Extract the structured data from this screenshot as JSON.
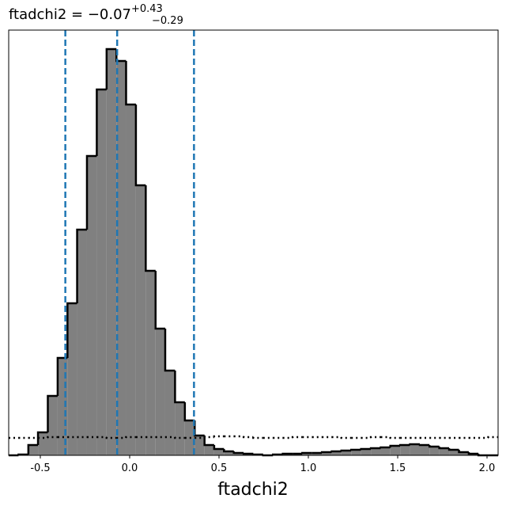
{
  "chart_data": {
    "type": "histogram",
    "title": "ftadchi2 = −0.07",
    "title_sup": "+0.43",
    "title_sub": "−0.29",
    "x_label": "ftadchi2",
    "bins": [
      -0.677,
      -0.622,
      -0.567,
      -0.513,
      -0.458,
      -0.403,
      -0.348,
      -0.294,
      -0.239,
      -0.184,
      -0.129,
      -0.074,
      -0.02,
      0.035,
      0.09,
      0.145,
      0.199,
      0.254,
      0.309,
      0.364,
      0.419,
      0.473,
      0.528,
      0.583,
      0.638,
      0.692,
      0.747,
      0.802,
      0.857,
      0.912,
      0.966,
      1.021,
      1.076,
      1.131,
      1.185,
      1.24,
      1.295,
      1.35,
      1.405,
      1.459,
      1.514,
      1.569,
      1.624,
      1.678,
      1.733,
      1.788,
      1.843,
      1.898,
      1.952,
      2.007,
      2.062
    ],
    "values": [
      0,
      1,
      13,
      29,
      75,
      123,
      192,
      285,
      378,
      462,
      513,
      498,
      443,
      341,
      233,
      160,
      107,
      67,
      44,
      25,
      13,
      8,
      5,
      3,
      2,
      1,
      0,
      1,
      2,
      2,
      3,
      3,
      4,
      5,
      6,
      7,
      8,
      9,
      10,
      12,
      13,
      14,
      13,
      11,
      9,
      7,
      4,
      2,
      0,
      0
    ],
    "color": "#808080",
    "reference_values": [
      22,
      22,
      22,
      22,
      23,
      23,
      23,
      23,
      23,
      23,
      22,
      22,
      23,
      23,
      23,
      23,
      23,
      22,
      22,
      22,
      23,
      24,
      24,
      24,
      23,
      22,
      22,
      22,
      22,
      23,
      23,
      23,
      23,
      23,
      22,
      22,
      22,
      23,
      23,
      22,
      22,
      22,
      22,
      22,
      22,
      22,
      22,
      22,
      22,
      23
    ],
    "quantiles": [
      -0.36,
      -0.07,
      0.36
    ],
    "quantile_color": "#1f77b4",
    "xlim": [
      -0.677,
      2.062
    ],
    "ylim": [
      0,
      537
    ],
    "xticks": [
      -0.5,
      {
        "value": 0.0,
        "label": "0.0"
      },
      0.5,
      {
        "value": 1.0,
        "label": "1.0"
      },
      1.5,
      {
        "value": 2.0,
        "label": "2.0"
      }
    ]
  }
}
